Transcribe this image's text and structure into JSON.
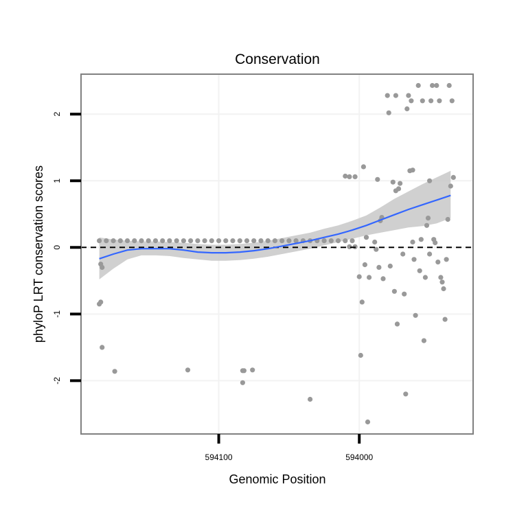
{
  "chart_data": {
    "type": "scatter",
    "title": "Conservation",
    "xlabel": "Genomic Position",
    "ylabel": "phyloP LRT conservation scores",
    "xlim": [
      594198,
      593919
    ],
    "ylim": [
      -2.8,
      2.6
    ],
    "x_ticks": [
      {
        "value": 594100,
        "label": "594100"
      },
      {
        "value": 594000,
        "label": "594000"
      }
    ],
    "y_ticks": [
      {
        "value": 2,
        "label": "2"
      },
      {
        "value": 1,
        "label": "1"
      },
      {
        "value": 0,
        "label": "0"
      },
      {
        "value": -1,
        "label": "-1"
      },
      {
        "value": -2,
        "label": "-2"
      }
    ],
    "reference_line": {
      "y": 0,
      "style": "dashed",
      "color": "#000000"
    },
    "grid": true,
    "colors": {
      "points": "#999999",
      "smooth": "#3366ff",
      "band": "#c8c8c8",
      "panel_border": "#808080"
    },
    "points": [
      {
        "x": 594185,
        "y": 0.1
      },
      {
        "x": 594180,
        "y": 0.1
      },
      {
        "x": 594175,
        "y": 0.1
      },
      {
        "x": 594170,
        "y": 0.1
      },
      {
        "x": 594165,
        "y": 0.1
      },
      {
        "x": 594160,
        "y": 0.1
      },
      {
        "x": 594155,
        "y": 0.1
      },
      {
        "x": 594150,
        "y": 0.1
      },
      {
        "x": 594145,
        "y": 0.1
      },
      {
        "x": 594140,
        "y": 0.1
      },
      {
        "x": 594135,
        "y": 0.1
      },
      {
        "x": 594130,
        "y": 0.1
      },
      {
        "x": 594125,
        "y": 0.1
      },
      {
        "x": 594120,
        "y": 0.1
      },
      {
        "x": 594115,
        "y": 0.1
      },
      {
        "x": 594110,
        "y": 0.1
      },
      {
        "x": 594105,
        "y": 0.1
      },
      {
        "x": 594100,
        "y": 0.1
      },
      {
        "x": 594095,
        "y": 0.1
      },
      {
        "x": 594090,
        "y": 0.1
      },
      {
        "x": 594085,
        "y": 0.1
      },
      {
        "x": 594080,
        "y": 0.1
      },
      {
        "x": 594075,
        "y": 0.1
      },
      {
        "x": 594070,
        "y": 0.1
      },
      {
        "x": 594065,
        "y": 0.1
      },
      {
        "x": 594060,
        "y": 0.1
      },
      {
        "x": 594055,
        "y": 0.1
      },
      {
        "x": 594050,
        "y": 0.1
      },
      {
        "x": 594045,
        "y": 0.1
      },
      {
        "x": 594040,
        "y": 0.1
      },
      {
        "x": 594035,
        "y": 0.1
      },
      {
        "x": 594030,
        "y": 0.1
      },
      {
        "x": 594025,
        "y": 0.1
      },
      {
        "x": 594020,
        "y": 0.1
      },
      {
        "x": 594015,
        "y": 0.1
      },
      {
        "x": 594010,
        "y": 0.1
      },
      {
        "x": 594005,
        "y": 0.1
      },
      {
        "x": 594185,
        "y": -0.85
      },
      {
        "x": 594184,
        "y": -0.82
      },
      {
        "x": 594184,
        "y": -0.25
      },
      {
        "x": 594183,
        "y": -0.3
      },
      {
        "x": 594183,
        "y": -1.5
      },
      {
        "x": 594174,
        "y": -1.86
      },
      {
        "x": 594122,
        "y": -1.84
      },
      {
        "x": 594083,
        "y": -2.03
      },
      {
        "x": 594082,
        "y": -1.85
      },
      {
        "x": 594076,
        "y": -1.84
      },
      {
        "x": 594083,
        "y": -1.85
      },
      {
        "x": 594035,
        "y": -2.28
      },
      {
        "x": 594010,
        "y": 1.07
      },
      {
        "x": 594007,
        "y": 1.06
      },
      {
        "x": 594003,
        "y": 1.06
      },
      {
        "x": 594007,
        "y": 0.01
      },
      {
        "x": 594003,
        "y": 0.01
      },
      {
        "x": 593997,
        "y": 1.21
      },
      {
        "x": 593995,
        "y": 0.15
      },
      {
        "x": 594000,
        "y": -0.44
      },
      {
        "x": 593998,
        "y": -0.82
      },
      {
        "x": 593999,
        "y": -1.62
      },
      {
        "x": 593996,
        "y": -0.26
      },
      {
        "x": 593993,
        "y": -0.45
      },
      {
        "x": 593994,
        "y": -2.62
      },
      {
        "x": 593989,
        "y": 0.08
      },
      {
        "x": 593988,
        "y": -0.03
      },
      {
        "x": 593987,
        "y": 1.02
      },
      {
        "x": 593986,
        "y": -0.3
      },
      {
        "x": 593985,
        "y": 0.4
      },
      {
        "x": 593984,
        "y": 0.45
      },
      {
        "x": 593983,
        "y": -0.47
      },
      {
        "x": 593980,
        "y": 2.28
      },
      {
        "x": 593979,
        "y": 2.02
      },
      {
        "x": 593978,
        "y": -0.28
      },
      {
        "x": 593976,
        "y": 0.98
      },
      {
        "x": 593975,
        "y": -0.66
      },
      {
        "x": 593974,
        "y": 2.28
      },
      {
        "x": 593974,
        "y": 0.85
      },
      {
        "x": 593973,
        "y": -1.15
      },
      {
        "x": 593972,
        "y": 0.88
      },
      {
        "x": 593971,
        "y": 0.96
      },
      {
        "x": 593969,
        "y": -0.1
      },
      {
        "x": 593968,
        "y": -0.7
      },
      {
        "x": 593967,
        "y": -2.2
      },
      {
        "x": 593966,
        "y": 2.08
      },
      {
        "x": 593965,
        "y": 2.28
      },
      {
        "x": 593964,
        "y": 1.15
      },
      {
        "x": 593963,
        "y": 2.2
      },
      {
        "x": 593962,
        "y": 0.08
      },
      {
        "x": 593962,
        "y": 1.16
      },
      {
        "x": 593961,
        "y": -0.18
      },
      {
        "x": 593960,
        "y": -1.02
      },
      {
        "x": 593958,
        "y": 2.43
      },
      {
        "x": 593957,
        "y": -0.35
      },
      {
        "x": 593956,
        "y": 0.12
      },
      {
        "x": 593955,
        "y": 2.2
      },
      {
        "x": 593954,
        "y": -1.4
      },
      {
        "x": 593953,
        "y": -0.45
      },
      {
        "x": 593952,
        "y": 0.33
      },
      {
        "x": 593951,
        "y": 0.44
      },
      {
        "x": 593950,
        "y": 1.0
      },
      {
        "x": 593950,
        "y": -0.1
      },
      {
        "x": 593949,
        "y": 2.2
      },
      {
        "x": 593948,
        "y": 2.43
      },
      {
        "x": 593947,
        "y": 0.12
      },
      {
        "x": 593946,
        "y": 0.07
      },
      {
        "x": 593945,
        "y": 2.43
      },
      {
        "x": 593944,
        "y": -0.22
      },
      {
        "x": 593943,
        "y": 2.2
      },
      {
        "x": 593942,
        "y": -0.45
      },
      {
        "x": 593941,
        "y": -0.52
      },
      {
        "x": 593940,
        "y": -0.62
      },
      {
        "x": 593939,
        "y": -1.08
      },
      {
        "x": 593938,
        "y": -0.18
      },
      {
        "x": 593937,
        "y": 0.42
      },
      {
        "x": 593936,
        "y": 2.43
      },
      {
        "x": 593935,
        "y": 0.92
      },
      {
        "x": 593934,
        "y": 2.2
      },
      {
        "x": 593933,
        "y": 1.05
      }
    ],
    "smooth": [
      {
        "x": 594185,
        "y": -0.17
      },
      {
        "x": 594175,
        "y": -0.1
      },
      {
        "x": 594165,
        "y": -0.04
      },
      {
        "x": 594155,
        "y": -0.02
      },
      {
        "x": 594145,
        "y": -0.02
      },
      {
        "x": 594135,
        "y": -0.02
      },
      {
        "x": 594125,
        "y": -0.04
      },
      {
        "x": 594115,
        "y": -0.07
      },
      {
        "x": 594105,
        "y": -0.08
      },
      {
        "x": 594095,
        "y": -0.08
      },
      {
        "x": 594085,
        "y": -0.07
      },
      {
        "x": 594075,
        "y": -0.05
      },
      {
        "x": 594065,
        "y": -0.02
      },
      {
        "x": 594055,
        "y": 0.02
      },
      {
        "x": 594045,
        "y": 0.06
      },
      {
        "x": 594035,
        "y": 0.1
      },
      {
        "x": 594025,
        "y": 0.15
      },
      {
        "x": 594015,
        "y": 0.2
      },
      {
        "x": 594005,
        "y": 0.26
      },
      {
        "x": 593995,
        "y": 0.33
      },
      {
        "x": 593985,
        "y": 0.41
      },
      {
        "x": 593975,
        "y": 0.49
      },
      {
        "x": 593965,
        "y": 0.57
      },
      {
        "x": 593955,
        "y": 0.64
      },
      {
        "x": 593945,
        "y": 0.71
      },
      {
        "x": 593935,
        "y": 0.78
      }
    ],
    "band": [
      {
        "x": 594185,
        "lo": -0.48,
        "hi": 0.15
      },
      {
        "x": 594175,
        "lo": -0.32,
        "hi": 0.12
      },
      {
        "x": 594165,
        "lo": -0.18,
        "hi": 0.1
      },
      {
        "x": 594155,
        "lo": -0.12,
        "hi": 0.09
      },
      {
        "x": 594145,
        "lo": -0.12,
        "hi": 0.09
      },
      {
        "x": 594135,
        "lo": -0.13,
        "hi": 0.08
      },
      {
        "x": 594125,
        "lo": -0.16,
        "hi": 0.07
      },
      {
        "x": 594115,
        "lo": -0.18,
        "hi": 0.05
      },
      {
        "x": 594105,
        "lo": -0.2,
        "hi": 0.04
      },
      {
        "x": 594095,
        "lo": -0.2,
        "hi": 0.04
      },
      {
        "x": 594085,
        "lo": -0.19,
        "hi": 0.05
      },
      {
        "x": 594075,
        "lo": -0.17,
        "hi": 0.07
      },
      {
        "x": 594065,
        "lo": -0.14,
        "hi": 0.1
      },
      {
        "x": 594055,
        "lo": -0.1,
        "hi": 0.14
      },
      {
        "x": 594045,
        "lo": -0.06,
        "hi": 0.18
      },
      {
        "x": 594035,
        "lo": -0.02,
        "hi": 0.22
      },
      {
        "x": 594025,
        "lo": 0.03,
        "hi": 0.28
      },
      {
        "x": 594015,
        "lo": 0.08,
        "hi": 0.33
      },
      {
        "x": 594005,
        "lo": 0.13,
        "hi": 0.4
      },
      {
        "x": 593995,
        "lo": 0.18,
        "hi": 0.48
      },
      {
        "x": 593985,
        "lo": 0.22,
        "hi": 0.6
      },
      {
        "x": 593975,
        "lo": 0.26,
        "hi": 0.73
      },
      {
        "x": 593965,
        "lo": 0.3,
        "hi": 0.84
      },
      {
        "x": 593955,
        "lo": 0.32,
        "hi": 0.95
      },
      {
        "x": 593945,
        "lo": 0.36,
        "hi": 1.05
      },
      {
        "x": 593935,
        "lo": 0.44,
        "hi": 1.15
      }
    ]
  }
}
